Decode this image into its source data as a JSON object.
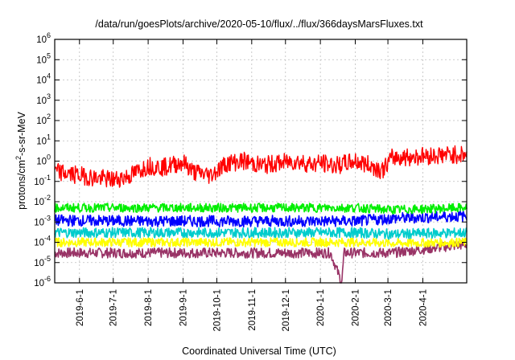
{
  "chart_data": {
    "type": "line",
    "title": "/data/run/goesPlots/archive/2020-05-10/flux/../flux/366daysMarsFluxes.txt",
    "xlabel": "Coordinated Universal Time (UTC)",
    "ylabel": {
      "prefix": "protons/cm",
      "sup": "2",
      "suffix": "-s-sr-MeV"
    },
    "yscale": "log",
    "ylim": [
      1e-06,
      1000000.0
    ],
    "xlim": [
      "2019-05-10",
      "2020-05-10"
    ],
    "grid": true,
    "legend": "none",
    "y_ticks": [
      {
        "value": 1e-06,
        "base": "10",
        "exp": "-6"
      },
      {
        "value": 1e-05,
        "base": "10",
        "exp": "-5"
      },
      {
        "value": 0.0001,
        "base": "10",
        "exp": "-4"
      },
      {
        "value": 0.001,
        "base": "10",
        "exp": "-3"
      },
      {
        "value": 0.01,
        "base": "10",
        "exp": "-2"
      },
      {
        "value": 0.1,
        "base": "10",
        "exp": "-1"
      },
      {
        "value": 1.0,
        "base": "10",
        "exp": "0"
      },
      {
        "value": 10.0,
        "base": "10",
        "exp": "1"
      },
      {
        "value": 100.0,
        "base": "10",
        "exp": "2"
      },
      {
        "value": 1000.0,
        "base": "10",
        "exp": "3"
      },
      {
        "value": 10000.0,
        "base": "10",
        "exp": "4"
      },
      {
        "value": 100000.0,
        "base": "10",
        "exp": "5"
      },
      {
        "value": 1000000.0,
        "base": "10",
        "exp": "6"
      }
    ],
    "x_ticks": [
      {
        "date": "2019-06-01",
        "label": "2019-6-1"
      },
      {
        "date": "2019-07-01",
        "label": "2019-7-1"
      },
      {
        "date": "2019-08-01",
        "label": "2019-8-1"
      },
      {
        "date": "2019-09-01",
        "label": "2019-9-1"
      },
      {
        "date": "2019-10-01",
        "label": "2019-10-1"
      },
      {
        "date": "2019-11-01",
        "label": "2019-11-1"
      },
      {
        "date": "2019-12-01",
        "label": "2019-12-1"
      },
      {
        "date": "2020-01-01",
        "label": "2020-1-1"
      },
      {
        "date": "2020-02-01",
        "label": "2020-2-1"
      },
      {
        "date": "2020-03-01",
        "label": "2020-3-1"
      },
      {
        "date": "2020-04-01",
        "label": "2020-4-1"
      }
    ],
    "series": [
      {
        "color": "#ff0000",
        "values": [
          [
            "2019-05-10",
            0.3
          ],
          [
            "2019-05-20",
            0.25
          ],
          [
            "2019-06-01",
            0.2
          ],
          [
            "2019-06-15",
            0.15
          ],
          [
            "2019-07-01",
            0.12
          ],
          [
            "2019-07-15",
            0.18
          ],
          [
            "2019-08-01",
            0.6
          ],
          [
            "2019-08-15",
            0.5
          ],
          [
            "2019-09-01",
            0.9
          ],
          [
            "2019-09-10",
            0.3
          ],
          [
            "2019-09-25",
            0.2
          ],
          [
            "2019-10-10",
            0.8
          ],
          [
            "2019-10-25",
            1.0
          ],
          [
            "2019-11-10",
            0.6
          ],
          [
            "2019-11-25",
            0.8
          ],
          [
            "2019-12-10",
            1.0
          ],
          [
            "2019-12-25",
            0.7
          ],
          [
            "2020-01-01",
            0.8
          ],
          [
            "2020-01-15",
            0.6
          ],
          [
            "2020-02-01",
            1.0
          ],
          [
            "2020-02-15",
            0.6
          ],
          [
            "2020-02-25",
            0.35
          ],
          [
            "2020-03-05",
            1.5
          ],
          [
            "2020-03-20",
            1.6
          ],
          [
            "2020-04-01",
            1.8
          ],
          [
            "2020-04-20",
            2.0
          ],
          [
            "2020-05-10",
            2.2
          ]
        ]
      },
      {
        "color": "#00ee00",
        "values": [
          [
            "2019-05-10",
            0.005
          ],
          [
            "2019-08-01",
            0.005
          ],
          [
            "2019-11-01",
            0.005
          ],
          [
            "2020-02-01",
            0.005
          ],
          [
            "2020-03-05",
            0.004
          ],
          [
            "2020-05-10",
            0.005
          ]
        ]
      },
      {
        "color": "#0000ff",
        "values": [
          [
            "2019-05-10",
            0.0012
          ],
          [
            "2019-08-01",
            0.0011
          ],
          [
            "2019-11-01",
            0.0011
          ],
          [
            "2020-02-01",
            0.0011
          ],
          [
            "2020-03-05",
            0.0015
          ],
          [
            "2020-05-10",
            0.002
          ]
        ]
      },
      {
        "color": "#00cccc",
        "values": [
          [
            "2019-05-10",
            0.0003
          ],
          [
            "2019-08-01",
            0.0003
          ],
          [
            "2019-11-01",
            0.0003
          ],
          [
            "2020-02-01",
            0.0003
          ],
          [
            "2020-03-05",
            0.00025
          ],
          [
            "2020-05-10",
            0.0003
          ]
        ]
      },
      {
        "color": "#ffff00",
        "values": [
          [
            "2019-05-10",
            0.0001
          ],
          [
            "2019-08-01",
            0.0001
          ],
          [
            "2019-11-01",
            0.0001
          ],
          [
            "2020-02-01",
            0.0001
          ],
          [
            "2020-03-05",
            9e-05
          ],
          [
            "2020-05-10",
            0.0001
          ]
        ]
      },
      {
        "color": "#993366",
        "values": [
          [
            "2019-05-10",
            3e-05
          ],
          [
            "2019-08-01",
            3e-05
          ],
          [
            "2019-11-01",
            3e-05
          ],
          [
            "2020-01-10",
            3e-05
          ],
          [
            "2020-01-20",
            1e-06
          ],
          [
            "2020-01-22",
            3e-05
          ],
          [
            "2020-03-05",
            3e-05
          ],
          [
            "2020-05-10",
            8e-05
          ]
        ]
      }
    ]
  }
}
